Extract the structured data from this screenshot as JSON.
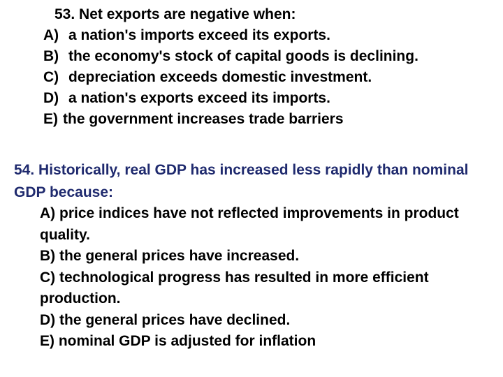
{
  "q53": {
    "question": "53. Net exports are negative when:",
    "options": [
      {
        "letter": "A)",
        "text": "a nation's imports exceed its exports."
      },
      {
        "letter": "B)",
        "text": "the economy's stock of capital goods is declining."
      },
      {
        "letter": "C)",
        "text": "depreciation exceeds domestic investment."
      },
      {
        "letter": "D)",
        "text": "a nation's exports exceed its imports."
      },
      {
        "letter": "E)",
        "text": "the government increases trade barriers"
      }
    ]
  },
  "q54": {
    "question": "54. Historically, real GDP has increased less rapidly than nominal GDP because:",
    "options": [
      "A) price indices have not reflected improvements in product quality.",
      "B) the general prices have increased.",
      "C) technological progress has resulted in more efficient production.",
      "D) the general prices have declined.",
      "E) nominal GDP is adjusted for inflation"
    ],
    "question_color": "#1f2a6e"
  }
}
